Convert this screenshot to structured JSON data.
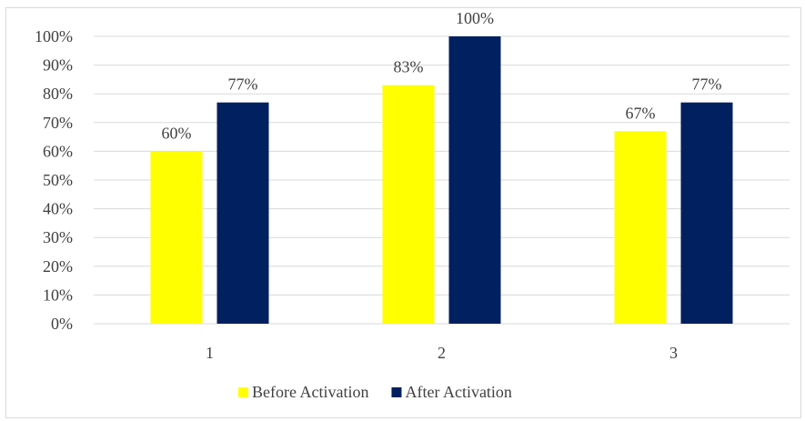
{
  "chart_data": {
    "type": "bar",
    "title": "",
    "xlabel": "",
    "ylabel": "",
    "categories": [
      "1",
      "2",
      "3"
    ],
    "series": [
      {
        "name": "Before Activation",
        "color": "#FFFF00",
        "values": [
          60,
          83,
          67
        ],
        "labels": [
          "60%",
          "83%",
          "67%"
        ]
      },
      {
        "name": "After Activation",
        "color": "#002060",
        "values": [
          77,
          100,
          77
        ],
        "labels": [
          "77%",
          "100%",
          "77%"
        ]
      }
    ],
    "ylim": [
      0,
      100
    ],
    "yticks": [
      0,
      10,
      20,
      30,
      40,
      50,
      60,
      70,
      80,
      90,
      100
    ],
    "ytick_labels": [
      "0%",
      "10%",
      "20%",
      "30%",
      "40%",
      "50%",
      "60%",
      "70%",
      "80%",
      "90%",
      "100%"
    ],
    "grid": true,
    "legend": "bottom"
  }
}
